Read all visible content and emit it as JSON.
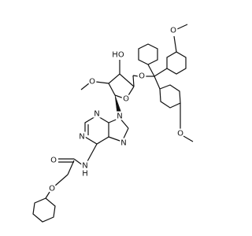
{
  "atoms": [
    {
      "label": "HO"
    },
    {
      "label": "O"
    },
    {
      "label": "O"
    },
    {
      "label": "O"
    },
    {
      "label": "O"
    },
    {
      "label": "O"
    },
    {
      "label": "N"
    },
    {
      "label": "N"
    },
    {
      "label": "N"
    },
    {
      "label": "N"
    },
    {
      "label": "N"
    },
    {
      "label": "H"
    },
    {
      "label": "O"
    },
    {
      "label": "O"
    }
  ]
}
